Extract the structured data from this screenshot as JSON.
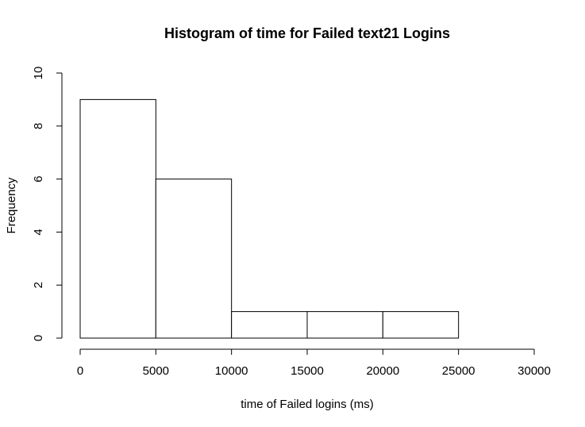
{
  "chart_data": {
    "type": "bar",
    "title": "Histogram of time for Failed text21 Logins",
    "xlabel": "time of Failed logins (ms)",
    "ylabel": "Frequency",
    "bins": [
      {
        "start": 0,
        "end": 5000,
        "count": 9
      },
      {
        "start": 5000,
        "end": 10000,
        "count": 6
      },
      {
        "start": 10000,
        "end": 15000,
        "count": 1
      },
      {
        "start": 15000,
        "end": 20000,
        "count": 1
      },
      {
        "start": 20000,
        "end": 25000,
        "count": 1
      }
    ],
    "xlim": [
      0,
      30000
    ],
    "ylim": [
      0,
      10
    ],
    "xticks": [
      "0",
      "5000",
      "10000",
      "15000",
      "20000",
      "25000",
      "30000"
    ],
    "yticks": [
      "0",
      "2",
      "4",
      "6",
      "8",
      "10"
    ],
    "grid": false,
    "bar_fill": "#ffffff",
    "bar_stroke": "#000000"
  }
}
